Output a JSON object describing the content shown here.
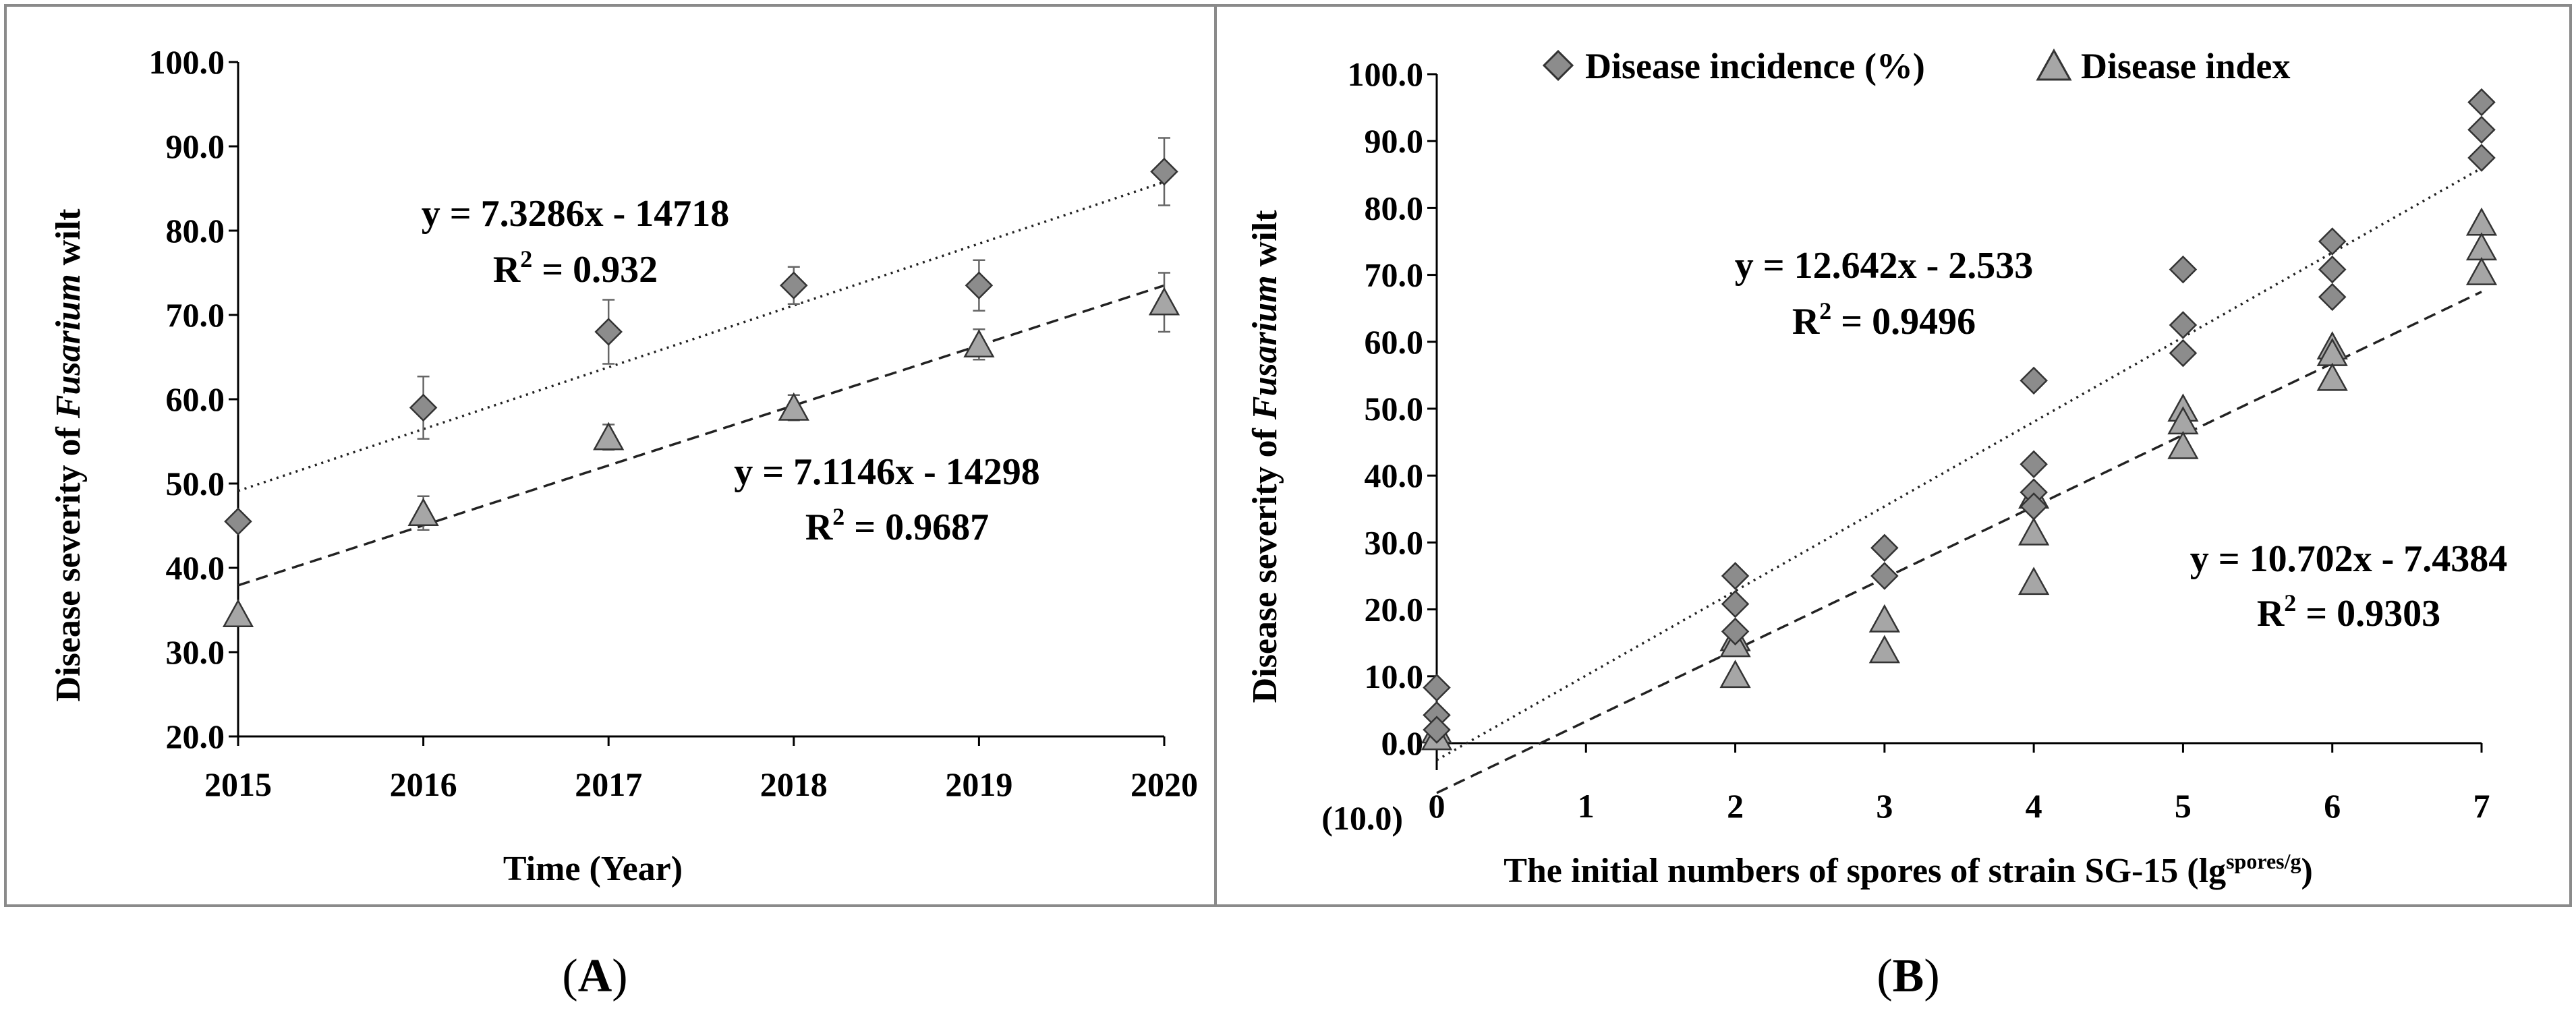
{
  "panels": [
    {
      "label_open": "(",
      "label_letter": "A",
      "label_close": ")",
      "ylabel_prefix": "Disease severity of ",
      "ylabel_italic": "Fusarium",
      "ylabel_suffix": " wilt",
      "xlabel": "Time (Year)",
      "eq1": "y = 7.3286x - 14718",
      "r2_1_prefix": "R",
      "r2_1_sup": "2",
      "r2_1_value": " = 0.932",
      "eq2": "y = 7.1146x - 14298",
      "r2_2_prefix": "R",
      "r2_2_sup": "2",
      "r2_2_value": " = 0.9687"
    },
    {
      "label_open": "(",
      "label_letter": "B",
      "label_close": ")",
      "ylabel_prefix": "Disease severity of ",
      "ylabel_italic": "Fusarium",
      "ylabel_suffix": " wilt",
      "xlabel_main": "The initial numbers of spores of strain SG-15 (lg",
      "xlabel_sup": "spores/g",
      "xlabel_end": ")",
      "legend": [
        "Disease incidence (%)",
        "Disease index"
      ],
      "eq1": "y = 12.642x - 2.533",
      "r2_1_prefix": "R",
      "r2_1_sup": "2",
      "r2_1_value": " = 0.9496",
      "eq2": "y = 10.702x - 7.4384",
      "r2_2_prefix": "R",
      "r2_2_sup": "2",
      "r2_2_value": " = 0.9303",
      "extra_ytick": "(10.0)",
      "extra_ytick_color": "#e8141b"
    }
  ],
  "colors": {
    "diamond_fill": "#8c8c8c",
    "triangle_fill": "#a6a6a6",
    "marker_stroke": "#333333",
    "errorbar": "#666666",
    "frame": "#8a8a8a"
  },
  "chart_data": [
    {
      "type": "scatter",
      "x_ticks": [
        "2015",
        "2016",
        "2017",
        "2018",
        "2019",
        "2020"
      ],
      "y_ticks": [
        "20.0",
        "30.0",
        "40.0",
        "50.0",
        "60.0",
        "70.0",
        "80.0",
        "90.0",
        "100.0"
      ],
      "xlim": [
        2015,
        2020
      ],
      "ylim": [
        20,
        100
      ],
      "series": [
        {
          "marker": "diamond",
          "x": [
            2015,
            2016,
            2017,
            2018,
            2019,
            2020
          ],
          "y": [
            45.5,
            59.0,
            68.0,
            73.5,
            73.5,
            87.0
          ],
          "err": [
            0,
            3.7,
            3.8,
            2.2,
            3.0,
            4.0
          ],
          "trend": {
            "style": "dotted",
            "slope": 7.3286,
            "intercept": -14718
          }
        },
        {
          "marker": "triangle",
          "x": [
            2015,
            2016,
            2017,
            2018,
            2019,
            2020
          ],
          "y": [
            34.5,
            46.5,
            55.5,
            59.0,
            66.5,
            71.5
          ],
          "err": [
            0,
            2.0,
            1.5,
            1.5,
            1.8,
            3.5
          ],
          "trend": {
            "style": "dashed",
            "slope": 7.1146,
            "intercept": -14298
          }
        }
      ]
    },
    {
      "type": "scatter",
      "x_ticks": [
        "0",
        "1",
        "2",
        "3",
        "4",
        "5",
        "6",
        "7"
      ],
      "y_ticks": [
        "0.0",
        "10.0",
        "20.0",
        "30.0",
        "40.0",
        "50.0",
        "60.0",
        "70.0",
        "80.0",
        "90.0",
        "100.0"
      ],
      "xlim": [
        0,
        7
      ],
      "ylim": [
        0,
        100
      ],
      "legend_position": "top",
      "series": [
        {
          "name": "Disease incidence (%)",
          "marker": "diamond",
          "x": [
            0,
            0,
            0,
            2,
            2,
            2,
            3,
            3,
            4,
            4,
            4,
            4,
            5,
            5,
            5,
            6,
            6,
            6,
            7,
            7,
            7
          ],
          "y": [
            8.3,
            4.2,
            2.0,
            25.0,
            20.8,
            16.7,
            29.2,
            25.0,
            54.2,
            41.7,
            37.5,
            35.4,
            70.8,
            62.5,
            58.3,
            75.0,
            70.8,
            66.7,
            95.8,
            91.7,
            87.5
          ],
          "trend": {
            "style": "dotted",
            "slope": 12.642,
            "intercept": -2.533
          }
        },
        {
          "name": "Disease index",
          "marker": "triangle",
          "x": [
            0,
            0,
            2,
            2,
            2,
            3,
            3,
            4,
            4,
            4,
            5,
            5,
            5,
            6,
            6,
            6,
            7,
            7,
            7
          ],
          "y": [
            1.9,
            0.9,
            15.7,
            14.8,
            10.2,
            18.5,
            13.9,
            37.0,
            31.5,
            24.1,
            50.0,
            48.1,
            44.4,
            59.3,
            58.3,
            54.6,
            77.8,
            74.1,
            70.4
          ],
          "trend": {
            "style": "dashed",
            "slope": 10.702,
            "intercept": -7.4384
          }
        }
      ]
    }
  ]
}
